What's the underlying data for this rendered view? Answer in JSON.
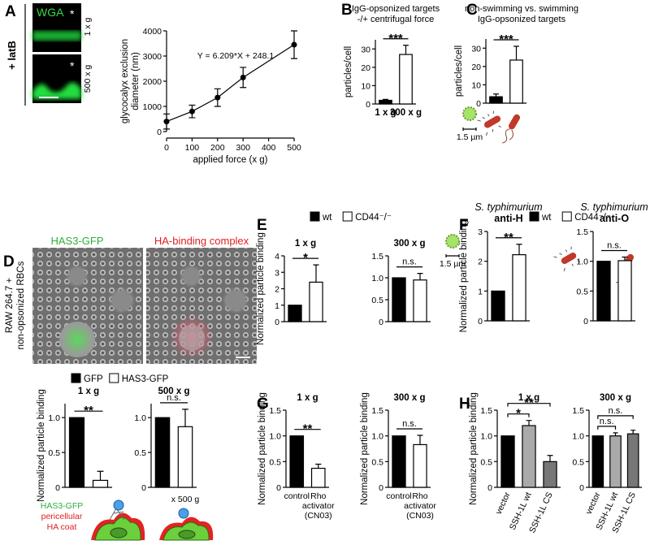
{
  "figure": {
    "letters": [
      "A",
      "B",
      "C",
      "D",
      "E",
      "F",
      "G",
      "H"
    ],
    "a_image": {
      "side_label": "+ latB",
      "stain": "WGA",
      "rows": [
        "1 x g",
        "500 x g"
      ],
      "marks": [
        "*",
        "*"
      ]
    },
    "d_image": {
      "channels": [
        "HAS3-GFP",
        "HA-binding complex"
      ],
      "side_label": [
        "RAW 264.7 +",
        "non-opsonized RBCs"
      ]
    },
    "d_schematic": {
      "labels": [
        "HAS3-GFP",
        "pericellular",
        "HA coat"
      ],
      "force": "x 500 g"
    },
    "scale_label": "1.5 µm",
    "legends": [
      {
        "items": [
          {
            "name": "GFP",
            "color": "#000000"
          },
          {
            "name": "HAS3-GFP",
            "color": "#ffffff"
          }
        ]
      },
      {
        "items": [
          {
            "name": "wt",
            "color": "#000000"
          },
          {
            "name": "CD44⁻/⁻",
            "color": "#ffffff"
          }
        ]
      },
      {
        "items": [
          {
            "name": "wt",
            "color": "#000000"
          },
          {
            "name": "CD44⁻/⁻",
            "color": "#ffffff"
          }
        ]
      }
    ]
  },
  "chart_data": [
    {
      "type": "line",
      "ylabel": [
        "glycocalyx exclusion",
        "diameter (nm)"
      ],
      "xlabel": "applied force (x g)",
      "x": [
        0,
        100,
        200,
        300,
        500
      ],
      "values": [
        400,
        800,
        1350,
        2150,
        3450
      ],
      "errors": [
        300,
        250,
        350,
        400,
        550
      ],
      "color": "#000000",
      "xlim": [
        0,
        500
      ],
      "xticks": [
        0,
        100,
        200,
        300,
        400,
        500
      ],
      "ylim": [
        0,
        4000
      ],
      "yticks": [
        0,
        1000,
        2000,
        3000,
        4000
      ],
      "annotation": "Y = 6.209*X + 248.1"
    },
    {
      "type": "bar",
      "title": [
        "IgG-opsonized targets",
        "-/+ centrifugal force"
      ],
      "ylabel": "particles/cell",
      "categories": [
        "1 x g",
        "300 x g"
      ],
      "values": [
        2,
        27
      ],
      "errors": [
        0.5,
        5
      ],
      "colors": [
        "#000000",
        "#ffffff"
      ],
      "ylim": [
        0,
        35
      ],
      "yticks": [
        0,
        10,
        20,
        30
      ],
      "sig": [
        "***"
      ]
    },
    {
      "type": "bar",
      "title": [
        "non-swimming vs. swimming",
        "IgG-opsonized targets"
      ],
      "ylabel": "particles/cell",
      "categories": [
        null,
        null
      ],
      "values": [
        3.5,
        23.5
      ],
      "errors": [
        1.5,
        7.5
      ],
      "colors": [
        "#000000",
        "#ffffff"
      ],
      "ylim": [
        0,
        35
      ],
      "yticks": [
        0,
        10,
        20,
        30
      ],
      "sig": [
        "***"
      ]
    },
    {
      "type": "bar",
      "title": "1 x g",
      "ylabel": "Normalized particle binding",
      "categories": [
        null,
        null
      ],
      "values": [
        1,
        0.1
      ],
      "errors": [
        null,
        0.13
      ],
      "colors": [
        "#000000",
        "#ffffff"
      ],
      "ylim": [
        0,
        1.2
      ],
      "yticks": [
        0,
        0.5,
        {
          "value": 1,
          "label": "1.0"
        }
      ],
      "sig": [
        "**"
      ]
    },
    {
      "type": "bar",
      "title": "500 x g",
      "categories": [
        null,
        null
      ],
      "values": [
        1,
        0.87
      ],
      "errors": [
        null,
        0.25
      ],
      "colors": [
        "#000000",
        "#ffffff"
      ],
      "ylim": [
        0,
        1.2
      ],
      "yticks": [
        0,
        0.5,
        {
          "value": 1,
          "label": "1.0"
        }
      ],
      "sig": [
        "n.s."
      ]
    },
    {
      "type": "bar",
      "title": "1 x g",
      "ylabel": "Normalized particle binding",
      "categories": [
        null,
        null
      ],
      "values": [
        1,
        2.4
      ],
      "errors": [
        null,
        1.05
      ],
      "colors": [
        "#000000",
        "#ffffff"
      ],
      "ylim": [
        0,
        4
      ],
      "yticks": [
        0,
        1,
        2,
        3,
        4
      ],
      "sig": [
        "*"
      ]
    },
    {
      "type": "bar",
      "title": "300 x g",
      "categories": [
        null,
        null
      ],
      "values": [
        1,
        0.95
      ],
      "errors": [
        null,
        0.15
      ],
      "colors": [
        "#000000",
        "#ffffff"
      ],
      "ylim": [
        0,
        1.5
      ],
      "yticks": [
        0,
        0.5,
        {
          "value": 1,
          "label": "1.0"
        },
        1.5
      ],
      "sig": [
        "n.s."
      ]
    },
    {
      "type": "bar",
      "title": [
        "S. typhimurium",
        "anti-H"
      ],
      "ylabel": "Normalized particle binding",
      "categories": [
        null,
        null
      ],
      "values": [
        1,
        2.22
      ],
      "errors": [
        null,
        0.35
      ],
      "colors": [
        "#000000",
        "#ffffff"
      ],
      "ylim": [
        0,
        3
      ],
      "yticks": [
        0,
        1,
        2,
        3
      ],
      "sig": [
        "**"
      ]
    },
    {
      "type": "bar",
      "title": [
        "S. typhimurium",
        "anti-O"
      ],
      "categories": [
        null,
        null
      ],
      "values": [
        1,
        1.01
      ],
      "errors": [
        null,
        0.06
      ],
      "colors": [
        "#000000",
        "#ffffff"
      ],
      "ylim": [
        0,
        1.5
      ],
      "yticks": [
        0,
        0.5,
        {
          "value": 1,
          "label": "1.0"
        },
        1.5
      ],
      "sig": [
        "n.s."
      ]
    },
    {
      "type": "bar",
      "title": "1 x g",
      "ylabel": "Normalized particle binding",
      "categories": [
        "control",
        "Rho activator (CN03)"
      ],
      "values": [
        1,
        0.37
      ],
      "errors": [
        null,
        0.08
      ],
      "colors": [
        "#000000",
        "#ffffff"
      ],
      "ylim": [
        0,
        1.5
      ],
      "yticks": [
        0,
        0.5,
        {
          "value": 1,
          "label": "1.0"
        },
        1.5
      ],
      "sig": [
        "**"
      ]
    },
    {
      "type": "bar",
      "title": "300 x g",
      "ylabel": "Normalized particle binding",
      "categories": [
        "control",
        "Rho activator (CN03)"
      ],
      "values": [
        1,
        0.83
      ],
      "errors": [
        null,
        0.18
      ],
      "colors": [
        "#000000",
        "#ffffff"
      ],
      "ylim": [
        0,
        1.5
      ],
      "yticks": [
        0,
        0.5,
        {
          "value": 1,
          "label": "1.0"
        },
        1.5
      ],
      "sig": [
        "n.s."
      ]
    },
    {
      "type": "bar",
      "title": "1 x g",
      "ylabel": "Normalized particle binding",
      "categories": [
        "vector",
        "SSH-1L wt",
        "SSH-1L CS"
      ],
      "values": [
        1,
        1.2,
        0.5
      ],
      "errors": [
        null,
        0.1,
        0.12
      ],
      "colors": [
        "#000000",
        "#aaaaaa",
        "#777777"
      ],
      "ylim": [
        0,
        1.5
      ],
      "yticks": [
        0,
        0.5,
        {
          "value": 1,
          "label": "1.0"
        },
        1.5
      ],
      "sig": [
        "*",
        "**"
      ]
    },
    {
      "type": "bar",
      "title": "300 x g",
      "categories": [
        "vector",
        "SSH-1L wt",
        "SSH-1L CS"
      ],
      "values": [
        1,
        1,
        1.04
      ],
      "errors": [
        null,
        0.06,
        0.07
      ],
      "colors": [
        "#000000",
        "#aaaaaa",
        "#777777"
      ],
      "ylim": [
        0,
        1.5
      ],
      "yticks": [
        0,
        0.5,
        {
          "value": 1,
          "label": "1.0"
        },
        1.5
      ],
      "sig": [
        "n.s.",
        "n.s."
      ]
    }
  ]
}
